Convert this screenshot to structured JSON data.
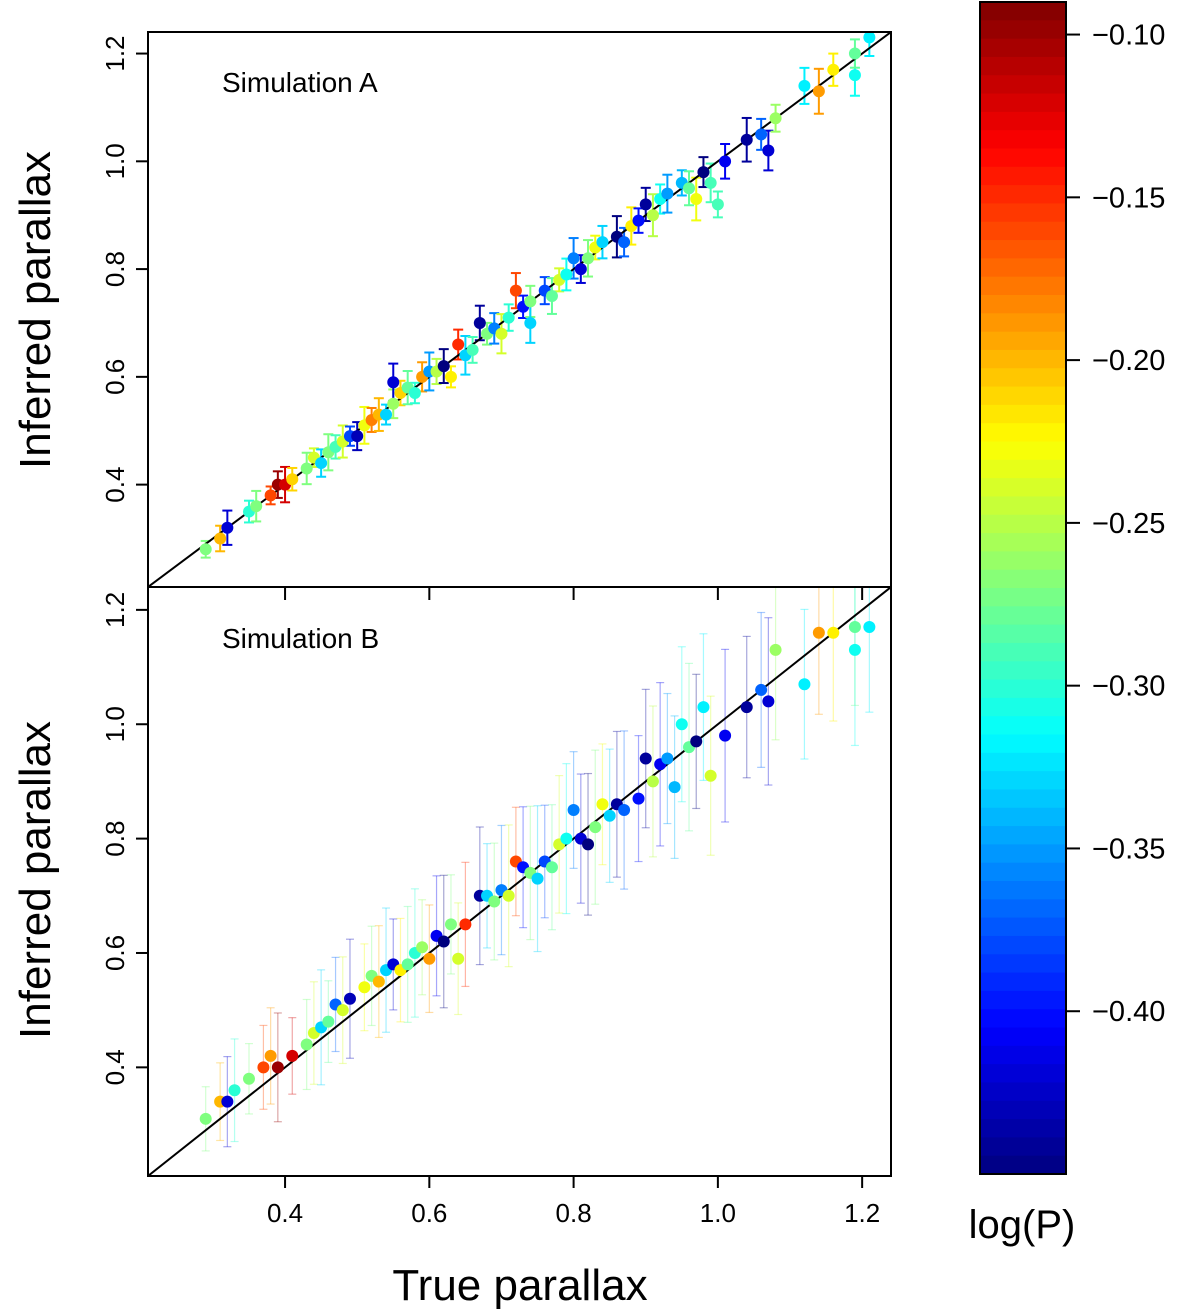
{
  "chart_data": [
    {
      "type": "scatter",
      "panel_label": "Simulation A",
      "xlabel": "True parallax",
      "ylabel": "Inferred parallax",
      "xlim": [
        0.21,
        1.24
      ],
      "ylim": [
        0.21,
        1.24
      ],
      "x_ticks": [
        0.4,
        0.6,
        0.8,
        1.0,
        1.2
      ],
      "x_tick_labels": [
        "0.4",
        "0.6",
        "0.8",
        "1.0",
        "1.2"
      ],
      "y_ticks": [
        0.4,
        0.6,
        0.8,
        1.0,
        1.2
      ],
      "y_tick_labels": [
        "0.4",
        "0.6",
        "0.8",
        "1.0",
        "1.2"
      ],
      "reference_line": "y = x",
      "error_bars": "small",
      "color_by": "log(P)",
      "points": [
        [
          0.29,
          0.28,
          -0.27
        ],
        [
          0.31,
          0.3,
          -0.2
        ],
        [
          0.32,
          0.32,
          -0.42
        ],
        [
          0.35,
          0.35,
          -0.3
        ],
        [
          0.36,
          0.36,
          -0.27
        ],
        [
          0.38,
          0.38,
          -0.16
        ],
        [
          0.39,
          0.4,
          -0.1
        ],
        [
          0.4,
          0.4,
          -0.12
        ],
        [
          0.41,
          0.41,
          -0.21
        ],
        [
          0.43,
          0.43,
          -0.27
        ],
        [
          0.44,
          0.45,
          -0.24
        ],
        [
          0.45,
          0.44,
          -0.33
        ],
        [
          0.46,
          0.46,
          -0.27
        ],
        [
          0.47,
          0.47,
          -0.29
        ],
        [
          0.48,
          0.48,
          -0.24
        ],
        [
          0.49,
          0.49,
          -0.38
        ],
        [
          0.5,
          0.49,
          -0.43
        ],
        [
          0.51,
          0.51,
          -0.23
        ],
        [
          0.52,
          0.52,
          -0.18
        ],
        [
          0.53,
          0.53,
          -0.2
        ],
        [
          0.54,
          0.53,
          -0.33
        ],
        [
          0.55,
          0.55,
          -0.26
        ],
        [
          0.55,
          0.59,
          -0.42
        ],
        [
          0.56,
          0.57,
          -0.21
        ],
        [
          0.57,
          0.58,
          -0.28
        ],
        [
          0.58,
          0.57,
          -0.3
        ],
        [
          0.59,
          0.6,
          -0.19
        ],
        [
          0.6,
          0.61,
          -0.35
        ],
        [
          0.61,
          0.61,
          -0.25
        ],
        [
          0.62,
          0.62,
          -0.45
        ],
        [
          0.63,
          0.6,
          -0.22
        ],
        [
          0.64,
          0.66,
          -0.15
        ],
        [
          0.65,
          0.64,
          -0.33
        ],
        [
          0.66,
          0.65,
          -0.29
        ],
        [
          0.67,
          0.7,
          -0.44
        ],
        [
          0.68,
          0.68,
          -0.27
        ],
        [
          0.69,
          0.69,
          -0.36
        ],
        [
          0.7,
          0.68,
          -0.24
        ],
        [
          0.71,
          0.71,
          -0.3
        ],
        [
          0.72,
          0.76,
          -0.16
        ],
        [
          0.73,
          0.73,
          -0.4
        ],
        [
          0.74,
          0.74,
          -0.27
        ],
        [
          0.74,
          0.7,
          -0.33
        ],
        [
          0.76,
          0.76,
          -0.38
        ],
        [
          0.77,
          0.75,
          -0.28
        ],
        [
          0.78,
          0.78,
          -0.24
        ],
        [
          0.79,
          0.79,
          -0.31
        ],
        [
          0.8,
          0.82,
          -0.36
        ],
        [
          0.81,
          0.8,
          -0.42
        ],
        [
          0.82,
          0.82,
          -0.27
        ],
        [
          0.83,
          0.84,
          -0.23
        ],
        [
          0.84,
          0.85,
          -0.33
        ],
        [
          0.86,
          0.86,
          -0.45
        ],
        [
          0.87,
          0.85,
          -0.37
        ],
        [
          0.88,
          0.88,
          -0.22
        ],
        [
          0.89,
          0.89,
          -0.4
        ],
        [
          0.9,
          0.92,
          -0.44
        ],
        [
          0.91,
          0.9,
          -0.25
        ],
        [
          0.92,
          0.93,
          -0.31
        ],
        [
          0.93,
          0.94,
          -0.35
        ],
        [
          0.95,
          0.96,
          -0.34
        ],
        [
          0.96,
          0.95,
          -0.28
        ],
        [
          0.97,
          0.93,
          -0.23
        ],
        [
          0.98,
          0.98,
          -0.45
        ],
        [
          0.99,
          0.96,
          -0.29
        ],
        [
          1.0,
          0.92,
          -0.29
        ],
        [
          1.01,
          1.0,
          -0.41
        ],
        [
          1.04,
          1.04,
          -0.44
        ],
        [
          1.06,
          1.05,
          -0.37
        ],
        [
          1.07,
          1.02,
          -0.42
        ],
        [
          1.08,
          1.08,
          -0.26
        ],
        [
          1.12,
          1.14,
          -0.32
        ],
        [
          1.14,
          1.13,
          -0.19
        ],
        [
          1.16,
          1.17,
          -0.22
        ],
        [
          1.19,
          1.16,
          -0.31
        ],
        [
          1.19,
          1.2,
          -0.28
        ],
        [
          1.21,
          1.23,
          -0.32
        ]
      ]
    },
    {
      "type": "scatter",
      "panel_label": "Simulation B",
      "xlabel": "True parallax",
      "ylabel": "Inferred parallax",
      "xlim": [
        0.21,
        1.24
      ],
      "ylim": [
        0.21,
        1.24
      ],
      "x_ticks": [
        0.4,
        0.6,
        0.8,
        1.0,
        1.2
      ],
      "x_tick_labels": [
        "0.4",
        "0.6",
        "0.8",
        "1.0",
        "1.2"
      ],
      "y_ticks": [
        0.4,
        0.6,
        0.8,
        1.0,
        1.2
      ],
      "y_tick_labels": [
        "0.4",
        "0.6",
        "0.8",
        "1.0",
        "1.2"
      ],
      "reference_line": "y = x",
      "error_bars": "large, faint",
      "color_by": "log(P)",
      "points": [
        [
          0.29,
          0.31,
          -0.27
        ],
        [
          0.31,
          0.34,
          -0.2
        ],
        [
          0.32,
          0.34,
          -0.42
        ],
        [
          0.33,
          0.36,
          -0.3
        ],
        [
          0.35,
          0.38,
          -0.27
        ],
        [
          0.37,
          0.4,
          -0.16
        ],
        [
          0.38,
          0.42,
          -0.19
        ],
        [
          0.39,
          0.4,
          -0.1
        ],
        [
          0.41,
          0.42,
          -0.12
        ],
        [
          0.43,
          0.44,
          -0.27
        ],
        [
          0.44,
          0.46,
          -0.24
        ],
        [
          0.45,
          0.47,
          -0.33
        ],
        [
          0.46,
          0.48,
          -0.28
        ],
        [
          0.47,
          0.51,
          -0.37
        ],
        [
          0.48,
          0.5,
          -0.24
        ],
        [
          0.49,
          0.52,
          -0.43
        ],
        [
          0.51,
          0.54,
          -0.23
        ],
        [
          0.52,
          0.56,
          -0.27
        ],
        [
          0.53,
          0.55,
          -0.2
        ],
        [
          0.54,
          0.57,
          -0.33
        ],
        [
          0.55,
          0.58,
          -0.42
        ],
        [
          0.56,
          0.57,
          -0.22
        ],
        [
          0.57,
          0.58,
          -0.28
        ],
        [
          0.58,
          0.6,
          -0.3
        ],
        [
          0.59,
          0.61,
          -0.26
        ],
        [
          0.6,
          0.59,
          -0.19
        ],
        [
          0.61,
          0.63,
          -0.41
        ],
        [
          0.62,
          0.62,
          -0.45
        ],
        [
          0.63,
          0.65,
          -0.27
        ],
        [
          0.64,
          0.59,
          -0.24
        ],
        [
          0.65,
          0.65,
          -0.15
        ],
        [
          0.67,
          0.7,
          -0.44
        ],
        [
          0.68,
          0.7,
          -0.33
        ],
        [
          0.69,
          0.69,
          -0.27
        ],
        [
          0.7,
          0.71,
          -0.36
        ],
        [
          0.71,
          0.7,
          -0.24
        ],
        [
          0.72,
          0.76,
          -0.16
        ],
        [
          0.73,
          0.75,
          -0.4
        ],
        [
          0.74,
          0.74,
          -0.27
        ],
        [
          0.75,
          0.73,
          -0.33
        ],
        [
          0.76,
          0.76,
          -0.38
        ],
        [
          0.77,
          0.75,
          -0.28
        ],
        [
          0.78,
          0.79,
          -0.24
        ],
        [
          0.79,
          0.8,
          -0.31
        ],
        [
          0.8,
          0.85,
          -0.36
        ],
        [
          0.81,
          0.8,
          -0.42
        ],
        [
          0.82,
          0.79,
          -0.45
        ],
        [
          0.83,
          0.82,
          -0.27
        ],
        [
          0.84,
          0.86,
          -0.23
        ],
        [
          0.85,
          0.84,
          -0.33
        ],
        [
          0.86,
          0.86,
          -0.44
        ],
        [
          0.87,
          0.85,
          -0.37
        ],
        [
          0.89,
          0.87,
          -0.4
        ],
        [
          0.9,
          0.94,
          -0.44
        ],
        [
          0.91,
          0.9,
          -0.25
        ],
        [
          0.92,
          0.93,
          -0.41
        ],
        [
          0.93,
          0.94,
          -0.35
        ],
        [
          0.94,
          0.89,
          -0.34
        ],
        [
          0.95,
          1.0,
          -0.31
        ],
        [
          0.96,
          0.96,
          -0.28
        ],
        [
          0.97,
          0.97,
          -0.45
        ],
        [
          0.98,
          1.03,
          -0.32
        ],
        [
          0.99,
          0.91,
          -0.24
        ],
        [
          1.01,
          0.98,
          -0.41
        ],
        [
          1.04,
          1.03,
          -0.44
        ],
        [
          1.06,
          1.06,
          -0.37
        ],
        [
          1.07,
          1.04,
          -0.42
        ],
        [
          1.08,
          1.13,
          -0.26
        ],
        [
          1.12,
          1.07,
          -0.32
        ],
        [
          1.14,
          1.16,
          -0.19
        ],
        [
          1.16,
          1.16,
          -0.22
        ],
        [
          1.19,
          1.13,
          -0.31
        ],
        [
          1.19,
          1.17,
          -0.28
        ],
        [
          1.21,
          1.17,
          -0.32
        ]
      ]
    }
  ],
  "colorbar": {
    "title": "log(P)",
    "vmin": -0.45,
    "vmax": -0.09,
    "ticks": [
      -0.1,
      -0.15,
      -0.2,
      -0.25,
      -0.3,
      -0.35,
      -0.4
    ],
    "tick_labels": [
      "−0.10",
      "−0.15",
      "−0.20",
      "−0.25",
      "−0.30",
      "−0.35",
      "−0.40"
    ],
    "colormap": [
      "#00007f",
      "#0000ff",
      "#007fff",
      "#00ffff",
      "#7fff7f",
      "#ffff00",
      "#ff7f00",
      "#ff0000",
      "#7f0000"
    ]
  }
}
